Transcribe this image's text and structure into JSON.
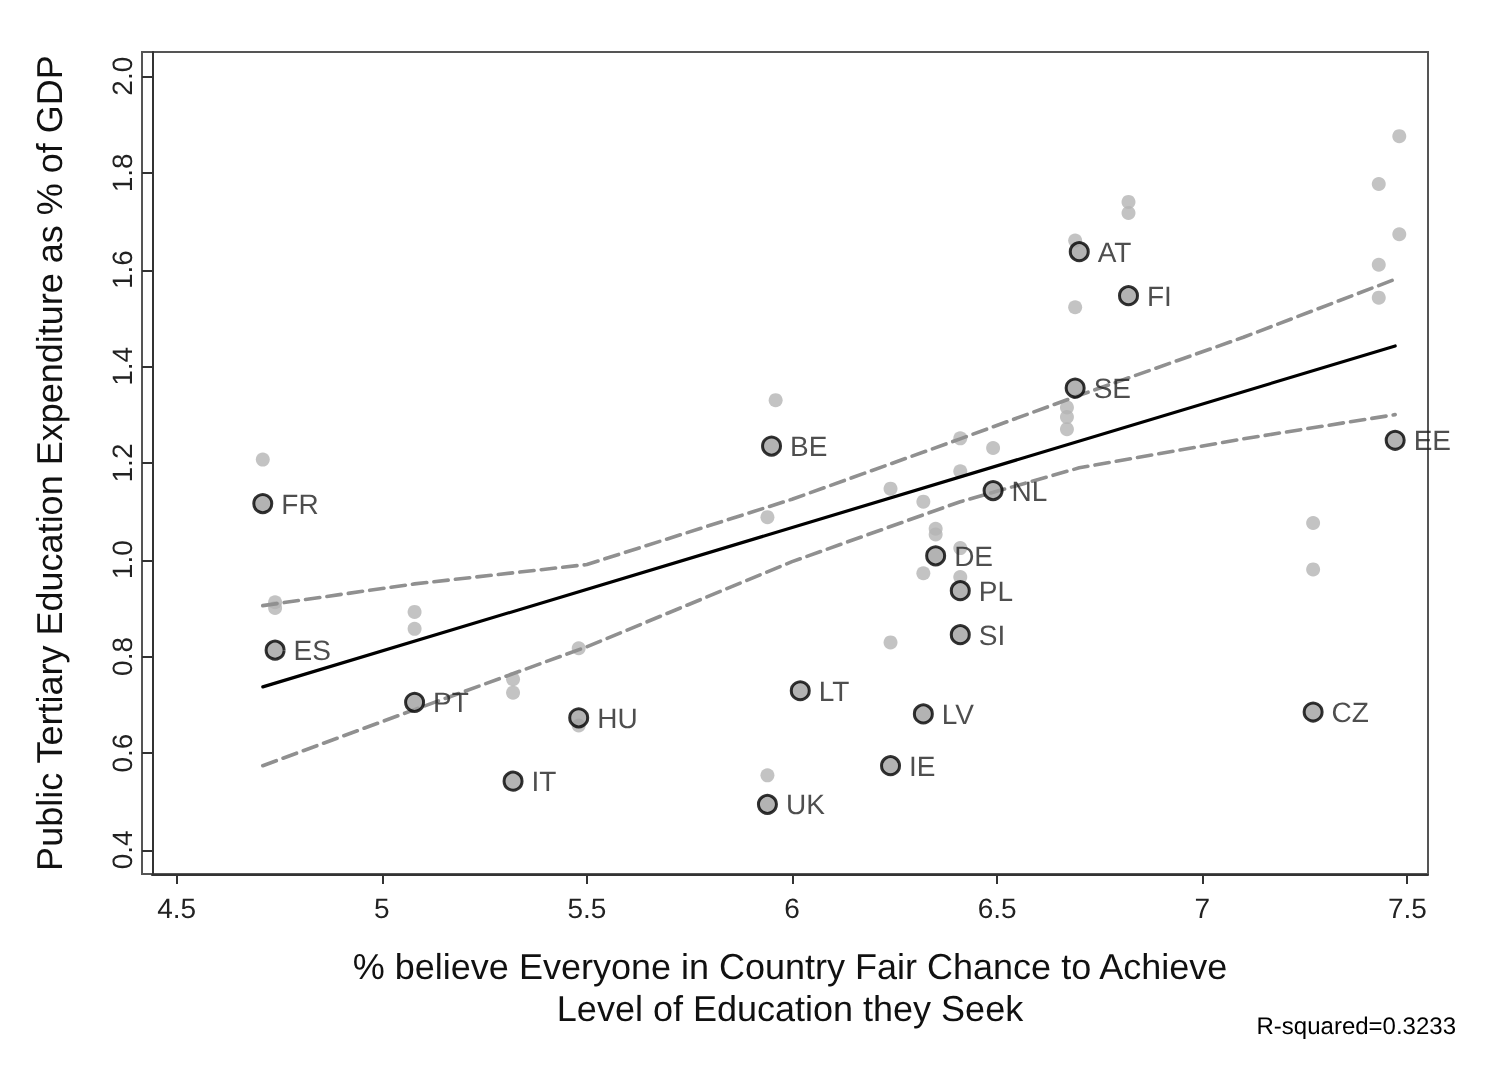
{
  "chart_data": {
    "type": "scatter",
    "xlabel": "% believe Everyone in Country Fair Chance to Achieve\nLevel of Education they Seek",
    "ylabel": "Public Tertiary Education Expenditure as % of GDP",
    "xlim": [
      4.44,
      7.55
    ],
    "xticks": [
      4.5,
      5,
      5.5,
      6,
      6.5,
      7,
      7.5
    ],
    "ylim": [
      0.35,
      2.05
    ],
    "yticks": [
      0.4,
      0.6,
      0.8,
      {
        "value": 1,
        "label": "1.0"
      },
      1.2,
      1.4,
      1.6,
      1.8,
      {
        "value": 2,
        "label": "2.0"
      }
    ],
    "grid": false,
    "series": [
      {
        "marker": "circle",
        "color": "#b4b4b4",
        "x": [
          4.71,
          4.74,
          4.74,
          5.08,
          5.08,
          5.32,
          5.32,
          5.48,
          5.48,
          5.96,
          5.94,
          5.94,
          6.24,
          6.24,
          6.32,
          6.32,
          6.35,
          6.35,
          6.41,
          6.41,
          6.41,
          6.41,
          6.49,
          6.67,
          6.67,
          6.67,
          6.69,
          6.69,
          6.82,
          6.82,
          7.27,
          7.27,
          7.43,
          7.43,
          7.43,
          7.48,
          7.48
        ],
        "values": [
          1.207,
          0.912,
          0.9,
          0.892,
          0.857,
          0.753,
          0.725,
          0.817,
          0.657,
          1.33,
          1.088,
          0.554,
          1.147,
          0.829,
          1.12,
          0.972,
          1.064,
          1.052,
          1.251,
          1.183,
          1.024,
          0.964,
          1.231,
          1.315,
          1.295,
          1.27,
          1.66,
          1.522,
          1.74,
          1.717,
          1.076,
          0.98,
          1.777,
          1.61,
          1.542,
          1.876,
          1.673
        ]
      },
      {
        "marker": "circle",
        "color": "#a0a0a0",
        "x": [
          4.71,
          4.74,
          5.08,
          5.32,
          5.48,
          5.95,
          5.94,
          6.02,
          6.24,
          6.32,
          6.35,
          6.41,
          6.41,
          6.49,
          6.69,
          6.7,
          6.82,
          7.27,
          7.47
        ],
        "values": [
          1.116,
          0.813,
          0.705,
          0.542,
          0.673,
          1.235,
          0.494,
          0.729,
          0.574,
          0.681,
          1.008,
          0.936,
          0.845,
          1.143,
          1.355,
          1.637,
          1.546,
          0.685,
          1.247
        ],
        "value_labels": [
          "FR",
          "ES",
          "PT",
          "IT",
          "HU",
          "BE",
          "UK",
          "LT",
          "IE",
          "LV",
          "DE",
          "PL",
          "SI",
          "NL",
          "SE",
          "AT",
          "FI",
          "CZ",
          "EE"
        ]
      },
      {
        "type": "line",
        "marker": "none",
        "color": "#000000",
        "line_style": "solid",
        "x": [
          4.71,
          7.47
        ],
        "values": [
          0.737,
          1.442
        ]
      },
      {
        "type": "line",
        "marker": "none",
        "color": "#909090",
        "line_style": "dashed",
        "x": [
          4.71,
          5.08,
          5.5,
          6.0,
          6.41,
          6.7,
          7.1,
          7.47
        ],
        "values": [
          0.905,
          0.95,
          0.99,
          1.125,
          1.25,
          1.34,
          1.46,
          1.58
        ]
      },
      {
        "type": "line",
        "marker": "none",
        "color": "#909090",
        "line_style": "dashed",
        "x": [
          4.71,
          5.08,
          5.5,
          6.0,
          6.41,
          6.7,
          7.1,
          7.47
        ],
        "values": [
          0.574,
          0.69,
          0.82,
          0.996,
          1.12,
          1.19,
          1.25,
          1.3
        ]
      }
    ],
    "annotations": [
      "R-squared=0.3233"
    ]
  }
}
